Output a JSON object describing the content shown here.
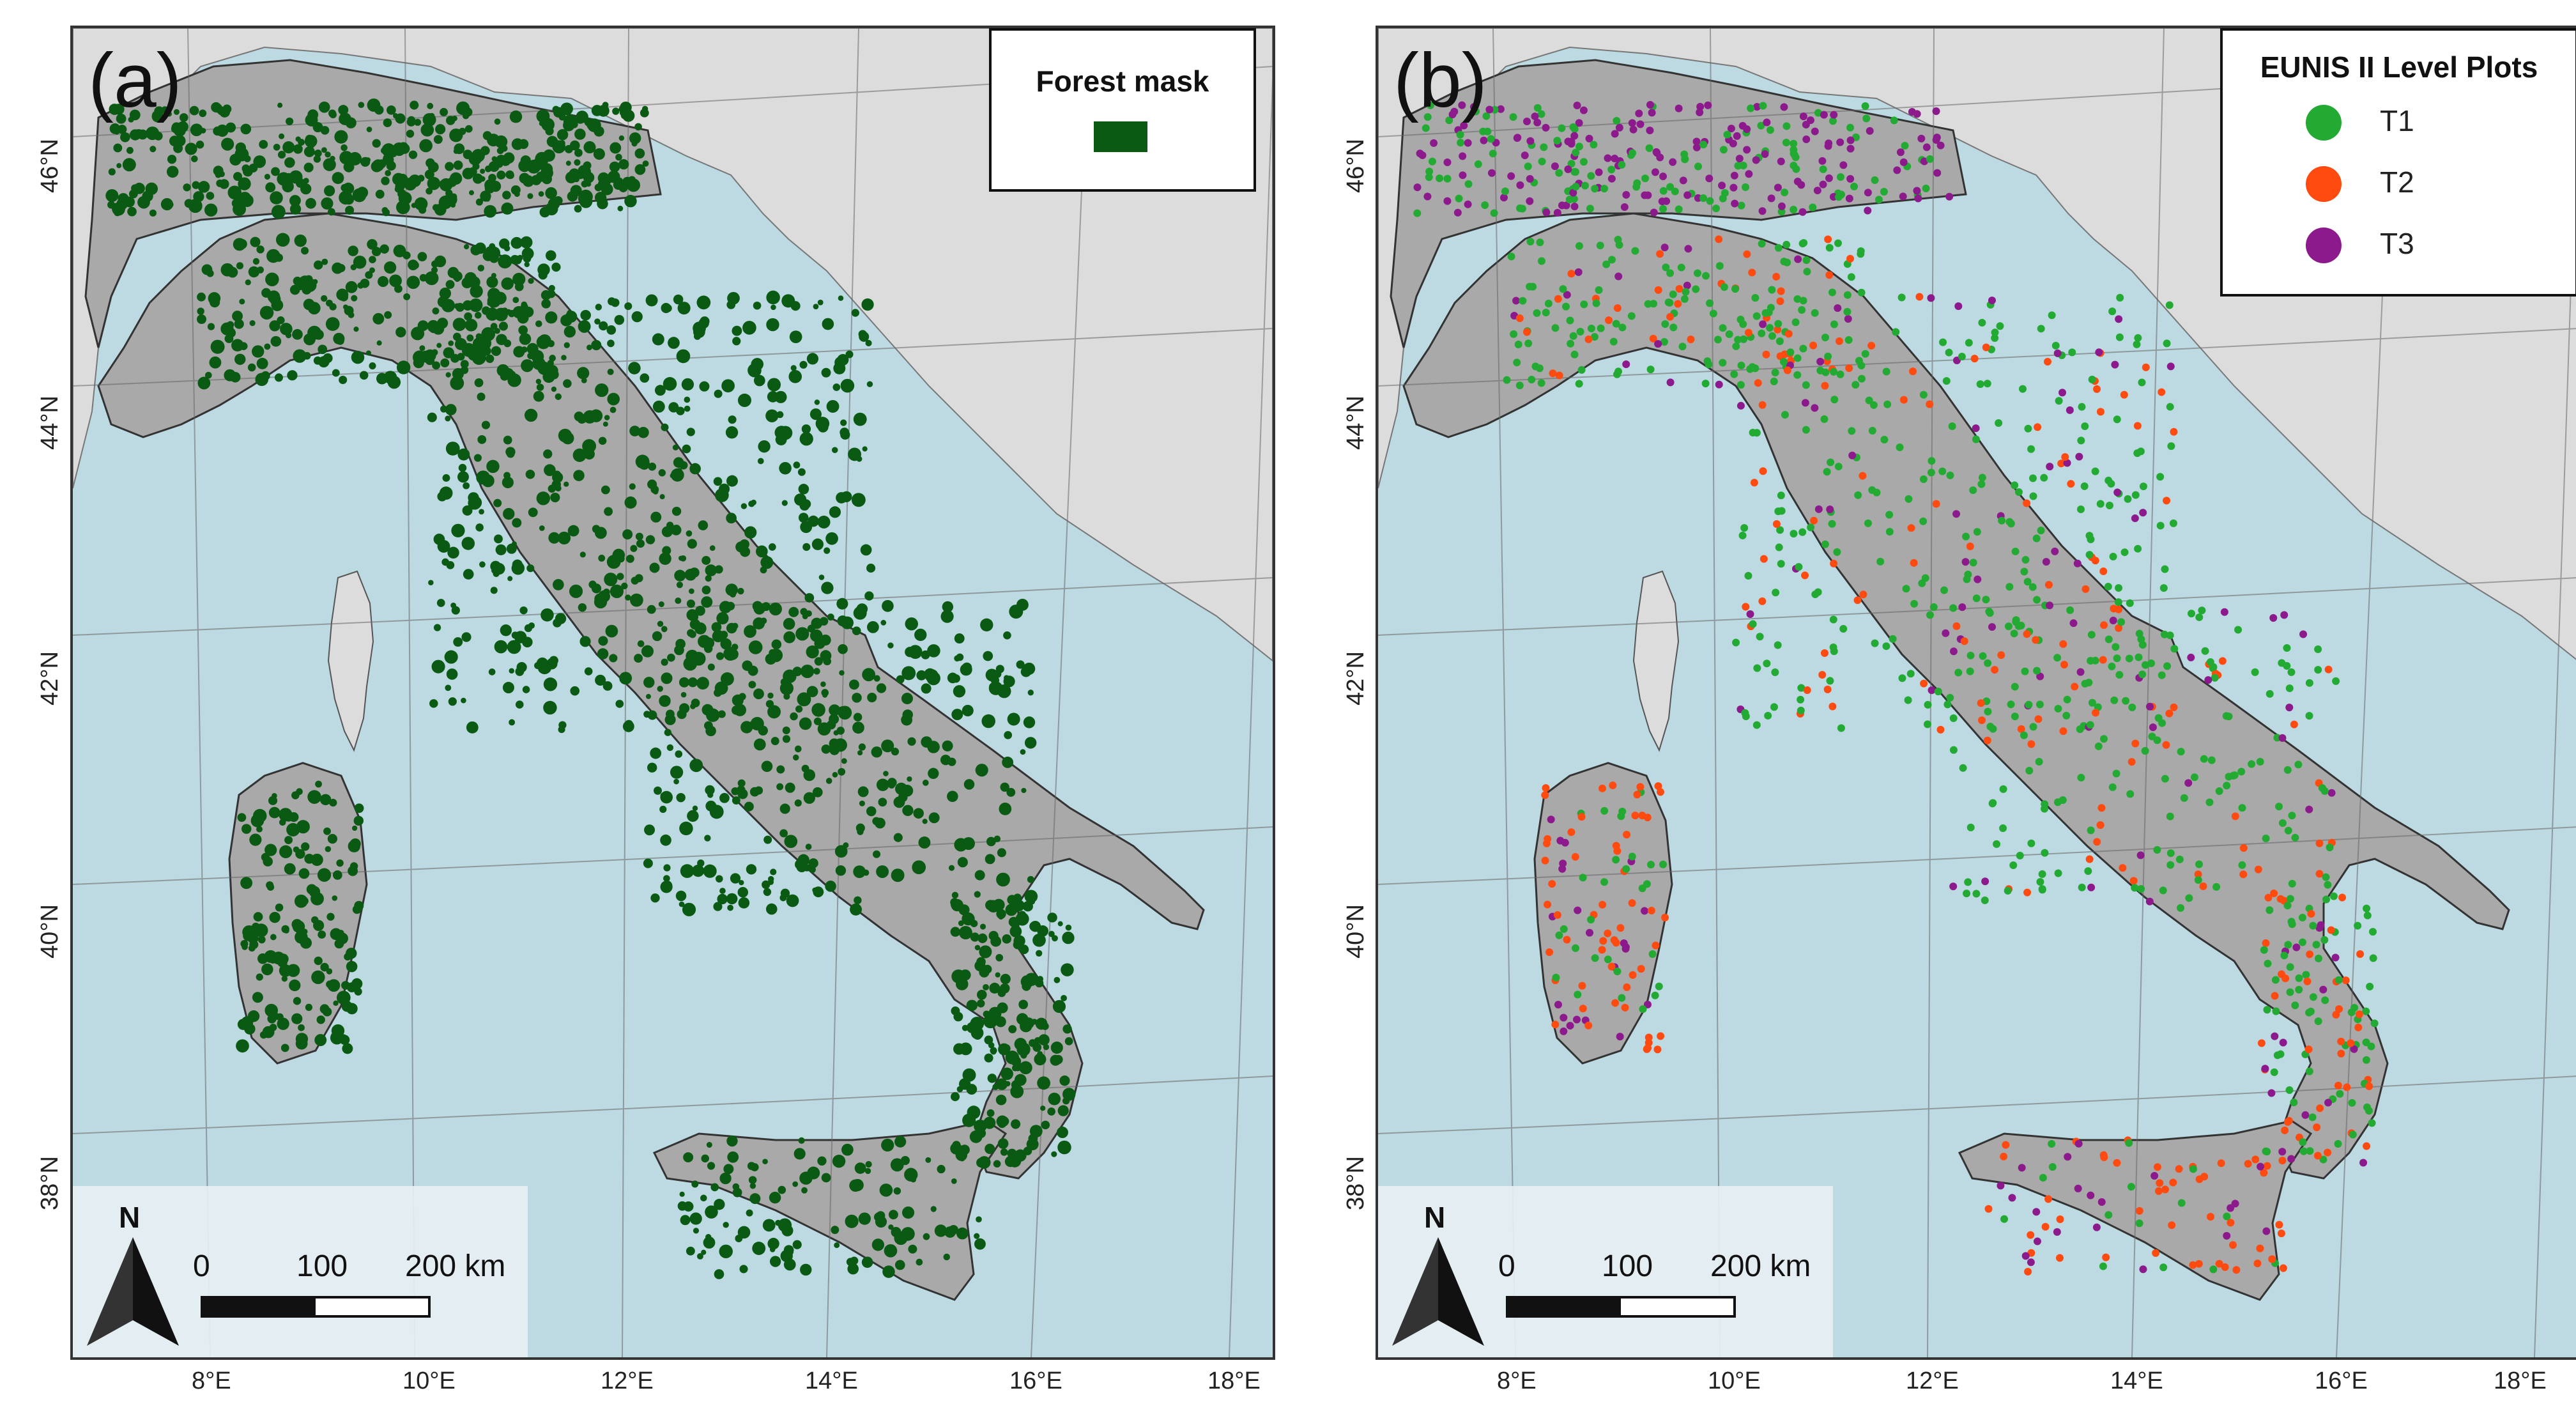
{
  "panel_a": {
    "label": "(a)",
    "legend": {
      "title": "Forest mask",
      "swatch_color": "#0b5a14"
    },
    "scale": {
      "north": "N",
      "ticks": [
        "0",
        "100",
        "200 km"
      ]
    },
    "lat_labels": [
      "46°N",
      "44°N",
      "42°N",
      "40°N",
      "38°N"
    ],
    "lon_labels": [
      "8°E",
      "10°E",
      "12°E",
      "14°E",
      "16°E",
      "18°E"
    ]
  },
  "panel_b": {
    "label": "(b)",
    "legend": {
      "title": "EUNIS II Level Plots",
      "items": [
        {
          "label": "T1",
          "color": "#22aa33"
        },
        {
          "label": "T2",
          "color": "#ff4a10"
        },
        {
          "label": "T3",
          "color": "#8c1a8c"
        }
      ]
    },
    "scale": {
      "north": "N",
      "ticks": [
        "0",
        "100",
        "200 km"
      ]
    },
    "lat_labels": [
      "46°N",
      "44°N",
      "42°N",
      "40°N",
      "38°N"
    ],
    "lon_labels": [
      "8°E",
      "10°E",
      "12°E",
      "14°E",
      "16°E",
      "18°E"
    ]
  },
  "colors": {
    "sea": "#bdd9e2",
    "land_other": "#dcdcdc",
    "italy": "#a9a9a9",
    "forest": "#0b5a14"
  }
}
